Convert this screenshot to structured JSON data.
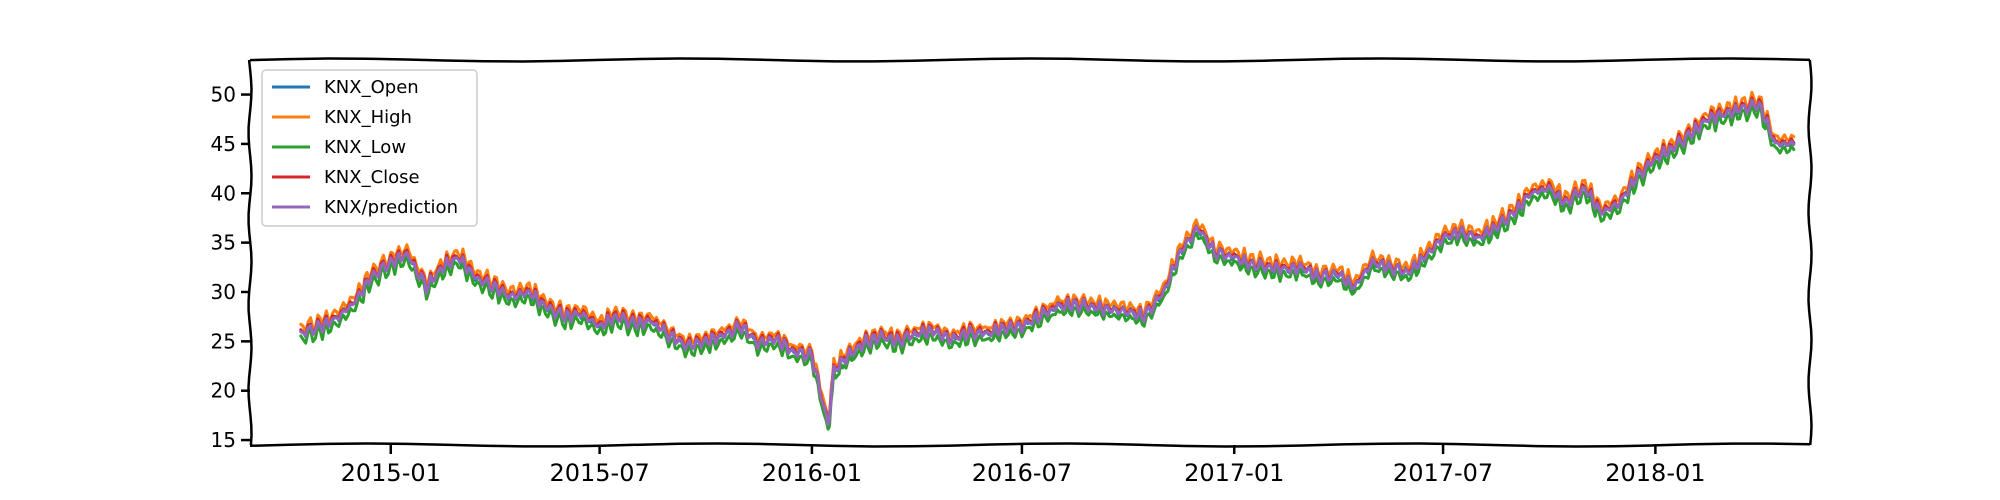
{
  "chart_data": {
    "type": "line",
    "title": "",
    "xlabel": "",
    "ylabel": "",
    "x_range": [
      "2014-09-01",
      "2018-05-15"
    ],
    "ylim": [
      14.5,
      53.5
    ],
    "y_ticks": [
      15,
      20,
      25,
      30,
      35,
      40,
      45,
      50
    ],
    "x_ticks": [
      "2015-01",
      "2015-07",
      "2016-01",
      "2016-07",
      "2017-01",
      "2017-07",
      "2018-01"
    ],
    "grid": false,
    "legend_position": "top-left",
    "x": [
      "2014-10-15",
      "2014-11-01",
      "2014-11-15",
      "2014-12-01",
      "2014-12-15",
      "2015-01-01",
      "2015-01-15",
      "2015-02-01",
      "2015-02-15",
      "2015-03-01",
      "2015-03-15",
      "2015-04-01",
      "2015-04-15",
      "2015-05-01",
      "2015-05-15",
      "2015-06-01",
      "2015-06-15",
      "2015-07-01",
      "2015-07-15",
      "2015-08-01",
      "2015-08-15",
      "2015-09-01",
      "2015-09-15",
      "2015-10-01",
      "2015-10-15",
      "2015-11-01",
      "2015-11-15",
      "2015-12-01",
      "2015-12-15",
      "2016-01-01",
      "2016-01-15",
      "2016-01-20",
      "2016-02-01",
      "2016-02-15",
      "2016-03-01",
      "2016-03-15",
      "2016-04-01",
      "2016-04-15",
      "2016-05-01",
      "2016-05-15",
      "2016-06-01",
      "2016-06-15",
      "2016-07-01",
      "2016-07-15",
      "2016-08-01",
      "2016-08-15",
      "2016-09-01",
      "2016-09-15",
      "2016-10-01",
      "2016-10-15",
      "2016-11-01",
      "2016-11-15",
      "2016-12-01",
      "2016-12-15",
      "2017-01-01",
      "2017-01-15",
      "2017-02-01",
      "2017-02-15",
      "2017-03-01",
      "2017-03-15",
      "2017-04-01",
      "2017-04-15",
      "2017-05-01",
      "2017-05-15",
      "2017-06-01",
      "2017-06-15",
      "2017-07-01",
      "2017-07-15",
      "2017-08-01",
      "2017-08-15",
      "2017-09-01",
      "2017-09-15",
      "2017-10-01",
      "2017-10-15",
      "2017-11-01",
      "2017-11-15",
      "2017-12-01",
      "2017-12-15",
      "2018-01-01",
      "2018-01-15",
      "2018-02-01",
      "2018-02-15",
      "2018-03-01",
      "2018-03-15",
      "2018-04-01",
      "2018-04-15",
      "2018-05-01"
    ],
    "series": [
      {
        "name": "KNX_Open",
        "color": "#1f77b4",
        "offset": 0.0
      },
      {
        "name": "KNX_High",
        "color": "#ff7f0e",
        "offset": 0.6
      },
      {
        "name": "KNX_Low",
        "color": "#2ca02c",
        "offset": -0.6
      },
      {
        "name": "KNX_Close",
        "color": "#d62728",
        "offset": 0.15
      },
      {
        "name": "KNX/prediction",
        "color": "#9467bd",
        "offset": 0.0
      }
    ],
    "base_values": [
      25.8,
      26.5,
      27.3,
      29.0,
      31.5,
      33.0,
      33.8,
      30.5,
      32.5,
      33.5,
      31.5,
      30.5,
      29.5,
      30.0,
      28.5,
      27.5,
      27.8,
      26.5,
      27.5,
      26.8,
      27.0,
      25.5,
      24.5,
      25.0,
      25.5,
      26.5,
      24.8,
      25.2,
      24.0,
      23.5,
      16.5,
      22.0,
      23.5,
      24.8,
      25.5,
      25.0,
      25.8,
      26.0,
      25.2,
      25.8,
      25.8,
      26.3,
      26.5,
      27.5,
      28.5,
      28.7,
      28.5,
      28.2,
      28.0,
      27.5,
      30.0,
      34.0,
      36.5,
      34.0,
      33.5,
      32.8,
      32.5,
      32.3,
      32.5,
      31.5,
      31.8,
      30.5,
      33.0,
      32.5,
      32.0,
      33.5,
      35.5,
      36.0,
      35.5,
      36.5,
      38.0,
      40.0,
      40.5,
      39.0,
      40.5,
      38.0,
      39.0,
      41.5,
      43.5,
      44.5,
      46.0,
      47.5,
      48.0,
      48.5,
      49.0,
      45.0,
      45.0
    ]
  }
}
